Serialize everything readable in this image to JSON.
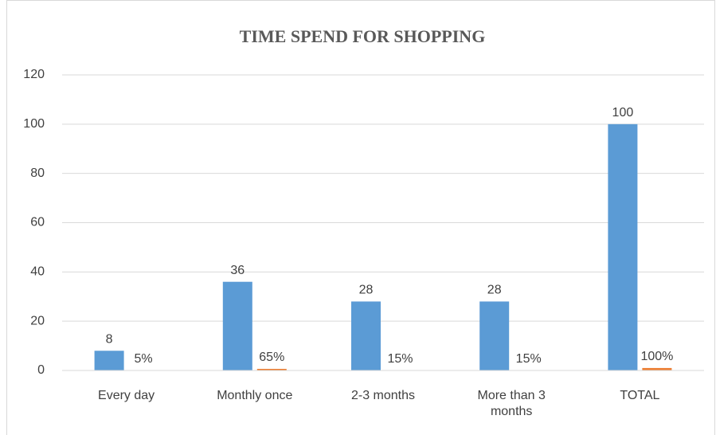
{
  "chart_data": {
    "type": "bar",
    "title": "TIME SPEND FOR SHOPPING",
    "categories": [
      "Every day",
      "Monthly once",
      "2-3 months",
      "More than 3 months",
      "TOTAL"
    ],
    "series": [
      {
        "color": "#5b9bd5",
        "values": [
          8,
          36,
          28,
          28,
          100
        ]
      },
      {
        "color": "#ed7d31",
        "values": [
          0.05,
          0.65,
          0.15,
          0.15,
          1
        ],
        "value_labels": [
          "5%",
          "65%",
          "15%",
          "15%",
          "100%"
        ]
      }
    ],
    "ylim": [
      0,
      120
    ],
    "yticks": [
      0,
      20,
      40,
      60,
      80,
      100,
      120
    ],
    "grid": true
  }
}
